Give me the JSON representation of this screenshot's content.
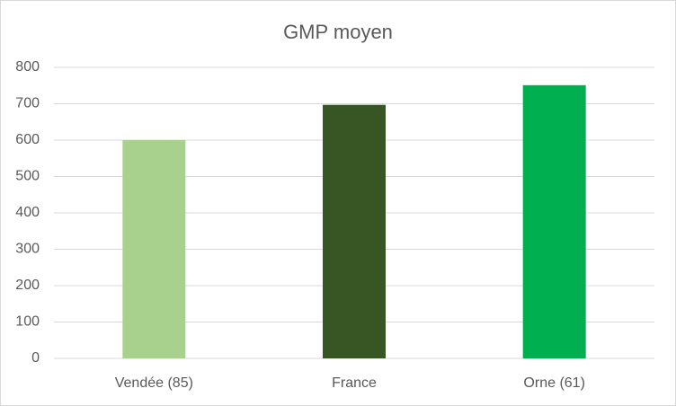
{
  "chart_data": {
    "type": "bar",
    "title": "GMP moyen",
    "categories": [
      "Vendée (85)",
      "France",
      "Orne (61)"
    ],
    "values": [
      600,
      697,
      751
    ],
    "colors": [
      "#a9d18e",
      "#375623",
      "#00b050"
    ],
    "ylim": [
      0,
      800
    ],
    "yticks": [
      0,
      100,
      200,
      300,
      400,
      500,
      600,
      700,
      800
    ],
    "grid": true
  }
}
